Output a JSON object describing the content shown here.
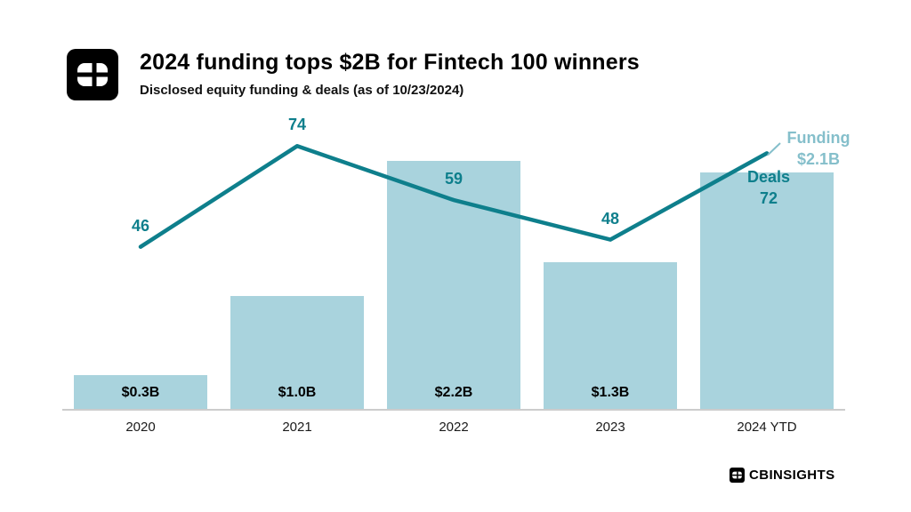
{
  "header": {
    "title": "2024 funding tops $2B for Fintech 100 winners",
    "subtitle": "Disclosed equity funding & deals (as of 10/23/2024)"
  },
  "footer": {
    "brand": "CBINSIGHTS"
  },
  "colors": {
    "bar": "#a9d3dd",
    "line": "#0e7f8c",
    "deals_label": "#0e7f8c",
    "funding_label": "#85bfcb",
    "axis": "#cccccc",
    "text": "#000000"
  },
  "chart_data": {
    "type": "combo",
    "title": "2024 funding tops $2B for Fintech 100 winners",
    "subtitle": "Disclosed equity funding & deals (as of 10/23/2024)",
    "categories": [
      "2020",
      "2021",
      "2022",
      "2023",
      "2024 YTD"
    ],
    "series": [
      {
        "name": "Funding",
        "type": "bar",
        "unit": "$B",
        "values": [
          0.3,
          1.0,
          2.2,
          1.3,
          2.1
        ],
        "labels": [
          "$0.3B",
          "$1.0B",
          "$2.2B",
          "$1.3B",
          "$2.1B"
        ]
      },
      {
        "name": "Deals",
        "type": "line",
        "values": [
          46,
          74,
          59,
          48,
          72
        ]
      }
    ],
    "annotations": {
      "funding_label": "Funding",
      "funding_value": "$2.1B",
      "deals_label": "Deals",
      "deals_value": "72"
    },
    "xlabel": "",
    "ylabel": "",
    "bar_ylim": [
      0,
      2.42
    ],
    "line_ylim": [
      40,
      80
    ],
    "grid": false,
    "legend_position": "inline-annotations"
  }
}
